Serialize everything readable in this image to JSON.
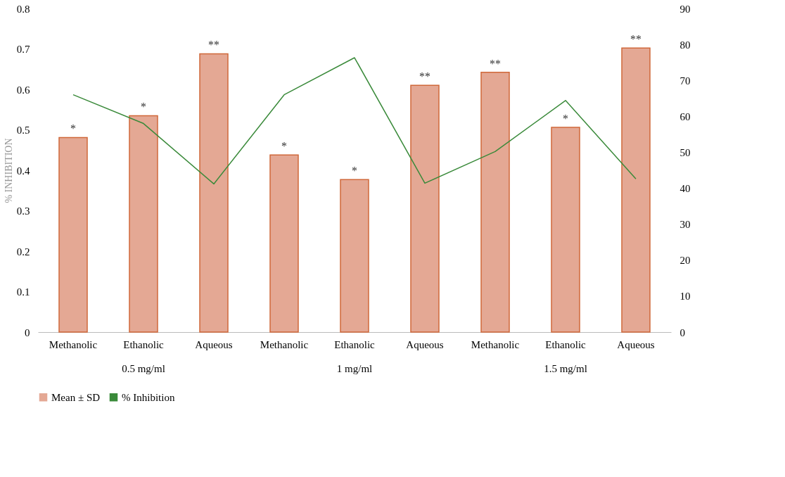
{
  "chart_data": {
    "type": "bar",
    "categories": [
      "Methanolic",
      "Ethanolic",
      "Aqueous",
      "Methanolic",
      "Ethanolic",
      "Aqueous",
      "Methanolic",
      "Ethanolic",
      "Aqueous"
    ],
    "series": [
      {
        "name": "Mean ± SD",
        "color": "#e4a894",
        "values": [
          0.481,
          0.535,
          0.688,
          0.438,
          0.377,
          0.61,
          0.642,
          0.506,
          0.702
        ],
        "value_labels": [
          "*",
          "*",
          "**",
          "*",
          "*",
          "**",
          "**",
          "*",
          "**"
        ]
      },
      {
        "name": "% Inhibition",
        "type": "line",
        "axis": "y2",
        "color": "#3a8a3a",
        "values": [
          66.0,
          58.0,
          41.2,
          66.0,
          76.3,
          41.4,
          50.2,
          64.4,
          42.6
        ]
      }
    ],
    "ylabel": "% INHIBITION",
    "ylim": [
      0,
      0.8
    ],
    "yticks": [
      0,
      0.1,
      0.2,
      0.3,
      0.4,
      0.5,
      0.6,
      0.7,
      0.8
    ],
    "y2lim": [
      0,
      90
    ],
    "y2ticks": [
      0,
      10,
      20,
      30,
      40,
      50,
      60,
      70,
      80,
      90
    ],
    "annotations": [
      "0.5 mg/ml",
      "1 mg/ml",
      "1.5 mg/ml"
    ],
    "legend": "bottom",
    "grid": false
  }
}
